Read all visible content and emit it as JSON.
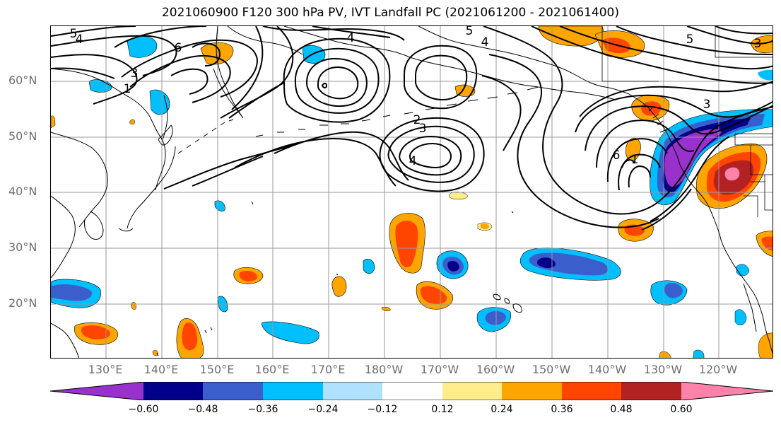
{
  "title": "2021060900 F120 300 hPa PV, IVT Landfall PC (2021061200 - 2021061400)",
  "lat_labels": [
    "60°N",
    "50°N",
    "40°N",
    "30°N",
    "20°N"
  ],
  "lon_labels": [
    "130°E",
    "140°E",
    "150°E",
    "160°E",
    "170°E",
    "180°W",
    "170°W",
    "160°W",
    "150°W",
    "140°W",
    "130°W",
    "120°W"
  ],
  "colorbar": {
    "ticks": [
      "−0.60",
      "−0.48",
      "−0.36",
      "−0.24",
      "−0.12",
      "0.12",
      "0.24",
      "0.36",
      "0.48",
      "0.60"
    ],
    "colors": [
      "#9932CC",
      "#00008B",
      "#3A5FCD",
      "#00BFFF",
      "#B0E2FF",
      "#FFFFFF",
      "#FFEC8B",
      "#FFA500",
      "#FF4500",
      "#B22222",
      "#FF82AB"
    ]
  },
  "contour_labels": [
    {
      "text": "5"
    },
    {
      "text": "4"
    },
    {
      "text": "6"
    },
    {
      "text": "3"
    },
    {
      "text": "1"
    },
    {
      "text": "4"
    },
    {
      "text": "5"
    },
    {
      "text": "4"
    },
    {
      "text": "2"
    },
    {
      "text": "3"
    },
    {
      "text": "4"
    },
    {
      "text": "5"
    },
    {
      "text": "3"
    },
    {
      "text": "3"
    },
    {
      "text": "6"
    },
    {
      "text": "1"
    }
  ],
  "colors": {
    "grid": "#999999",
    "coast": "#000000",
    "contour": "#000000",
    "axis_label": "#6e6e6e"
  }
}
